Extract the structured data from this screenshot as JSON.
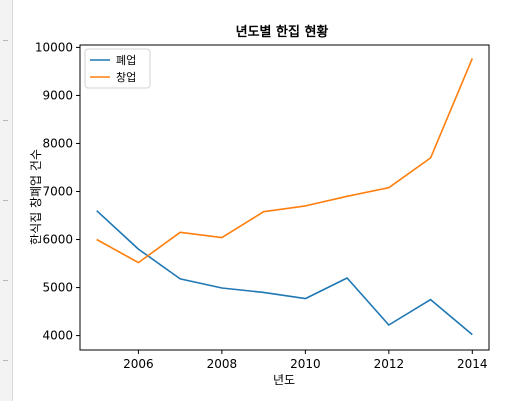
{
  "chart_data": {
    "type": "line",
    "title": "년도별 한집 현황",
    "xlabel": "년도",
    "ylabel": "한식집 창폐업 건수",
    "x": [
      2005,
      2006,
      2007,
      2008,
      2009,
      2010,
      2011,
      2012,
      2013,
      2014
    ],
    "xlim": [
      2004.6,
      2014.4
    ],
    "ylim": [
      3700,
      10050
    ],
    "x_ticks": [
      "2006",
      "2008",
      "2010",
      "2012",
      "2014"
    ],
    "y_ticks": [
      "4000",
      "5000",
      "6000",
      "7000",
      "8000",
      "9000",
      "10000"
    ],
    "grid": false,
    "legend_position": "top-left",
    "series": [
      {
        "name": "폐업",
        "color": "#1f77b4",
        "values": [
          6600,
          5800,
          5180,
          4990,
          4900,
          4770,
          5200,
          4220,
          4750,
          4020
        ]
      },
      {
        "name": "창업",
        "color": "#ff7f0e",
        "values": [
          6000,
          5520,
          6150,
          6040,
          6580,
          6700,
          6900,
          7080,
          7700,
          9770
        ]
      }
    ]
  }
}
